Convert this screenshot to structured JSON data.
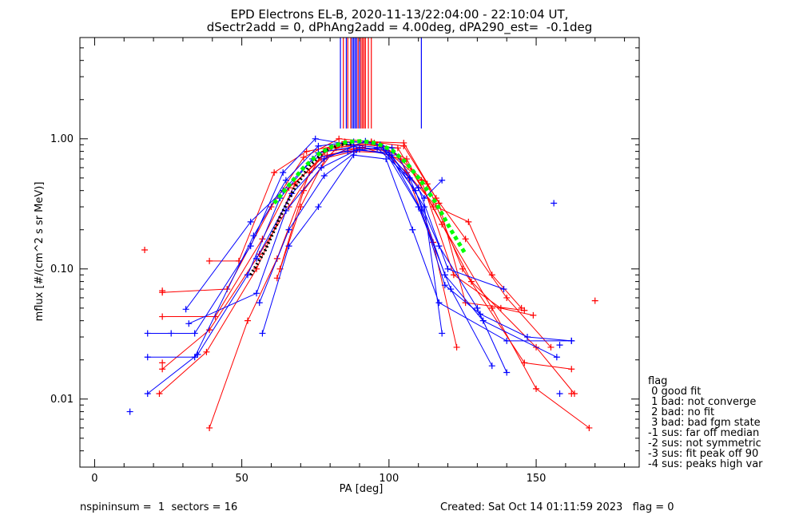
{
  "title_line1": "EPD Electrons EL-B, 2020-11-13/22:04:00 - 22:10:04 UT,",
  "title_line2": "dSectr2add = 0, dPhAng2add = 4.00deg, dPA290_est=  -0.1deg",
  "footer_left": "nspininsum =  1  sectors = 16",
  "footer_right": "Created: Sat Oct 14 01:11:59 2023   flag = 0",
  "legend": {
    "title": "flag",
    "items": [
      " 0 good fit",
      " 1 bad: not converge",
      " 2 bad: no fit",
      " 3 bad: bad fgm state",
      "-1 sus: far off median",
      "-2 sus: not symmetric",
      "-3 sus: fit peak off 90",
      "-4 sus: peaks high var"
    ]
  },
  "colors": {
    "red": "#ff0000",
    "blue": "#0000ff",
    "green": "#00ff00",
    "black": "#000000"
  },
  "chart_data": {
    "type": "line",
    "xlabel": "PA [deg]",
    "ylabel": "mflux [#/(cm^2 s sr MeV)]",
    "xlim": [
      -5,
      185
    ],
    "ylim": [
      0.003,
      6
    ],
    "yscale": "log",
    "xticks": [
      0,
      50,
      100,
      150
    ],
    "xtick_labels": [
      "0",
      "50",
      "100",
      "150"
    ],
    "yticks": [
      0.01,
      0.1,
      1.0
    ],
    "ytick_labels": [
      "0.01",
      "0.10",
      "1.00"
    ],
    "vertical_lines": [
      {
        "x": 83.5,
        "color": "blue"
      },
      {
        "x": 84.5,
        "color": "red"
      },
      {
        "x": 85.5,
        "color": "blue"
      },
      {
        "x": 86,
        "color": "red"
      },
      {
        "x": 87,
        "color": "red"
      },
      {
        "x": 87.5,
        "color": "blue"
      },
      {
        "x": 88,
        "color": "blue"
      },
      {
        "x": 88.5,
        "color": "blue"
      },
      {
        "x": 89,
        "color": "blue"
      },
      {
        "x": 89.5,
        "color": "red"
      },
      {
        "x": 90,
        "color": "blue"
      },
      {
        "x": 90.5,
        "color": "red"
      },
      {
        "x": 91,
        "color": "red"
      },
      {
        "x": 91.5,
        "color": "red"
      },
      {
        "x": 92,
        "color": "red"
      },
      {
        "x": 93,
        "color": "red"
      },
      {
        "x": 94,
        "color": "red"
      },
      {
        "x": 111,
        "color": "blue"
      }
    ],
    "vertical_line_range": [
      1.2,
      6
    ],
    "series": [
      {
        "color": "red",
        "points": [
          [
            22,
            0.011
          ],
          [
            38,
            0.023
          ],
          [
            55,
            0.1
          ],
          [
            68,
            0.45
          ],
          [
            80,
            0.85
          ],
          [
            92,
            0.9
          ],
          [
            103,
            0.85
          ],
          [
            115,
            0.3
          ],
          [
            128,
            0.08
          ],
          [
            150,
            0.025
          ],
          [
            163,
            0.011
          ]
        ]
      },
      {
        "color": "red",
        "points": [
          [
            39,
            0.006
          ],
          [
            52,
            0.04
          ],
          [
            62,
            0.12
          ],
          [
            73,
            0.55
          ],
          [
            85,
            0.95
          ],
          [
            95,
            0.93
          ],
          [
            106,
            0.7
          ],
          [
            118,
            0.22
          ],
          [
            135,
            0.05
          ],
          [
            150,
            0.012
          ],
          [
            168,
            0.006
          ]
        ]
      },
      {
        "color": "red",
        "points": [
          [
            23,
            0.017
          ],
          [
            39,
            0.034
          ],
          [
            56,
            0.13
          ],
          [
            66,
            0.3
          ],
          [
            78,
            0.8
          ],
          [
            90,
            0.85
          ],
          [
            101,
            0.8
          ],
          [
            113,
            0.45
          ],
          [
            125,
            0.1
          ],
          [
            146,
            0.019
          ],
          [
            162,
            0.017
          ]
        ]
      },
      {
        "color": "red",
        "points": [
          [
            23,
            0.043
          ],
          [
            41,
            0.043
          ],
          [
            57,
            0.17
          ],
          [
            66,
            0.42
          ],
          [
            77,
            0.7
          ],
          [
            88,
            0.8
          ],
          [
            100,
            0.78
          ],
          [
            111,
            0.48
          ],
          [
            122,
            0.09
          ],
          [
            138,
            0.05
          ],
          [
            149,
            0.044
          ]
        ]
      },
      {
        "color": "red",
        "points": [
          [
            39,
            0.115
          ],
          [
            49,
            0.115
          ],
          [
            61,
            0.55
          ],
          [
            72,
            0.8
          ],
          [
            84,
            0.9
          ],
          [
            96,
            0.9
          ],
          [
            106,
            0.55
          ],
          [
            116,
            0.3
          ],
          [
            127,
            0.23
          ],
          [
            135,
            0.09
          ],
          [
            145,
            0.05
          ]
        ]
      },
      {
        "color": "red",
        "points": [
          [
            23,
            0.066
          ],
          [
            45,
            0.07
          ],
          [
            60,
            0.3
          ],
          [
            71,
            0.72
          ],
          [
            83,
            1.0
          ],
          [
            94,
            0.95
          ],
          [
            105,
            0.88
          ],
          [
            116,
            0.35
          ],
          [
            126,
            0.17
          ],
          [
            140,
            0.06
          ],
          [
            155,
            0.025
          ]
        ]
      },
      {
        "color": "red",
        "points": [
          [
            62,
            0.085
          ],
          [
            70,
            0.3
          ],
          [
            79,
            0.75
          ],
          [
            91,
            0.86
          ],
          [
            104,
            0.7
          ],
          [
            115,
            0.16
          ],
          [
            123,
            0.025
          ]
        ]
      },
      {
        "color": "red",
        "points": [
          [
            63,
            0.1
          ],
          [
            71,
            0.4
          ],
          [
            82,
            0.85
          ],
          [
            94,
            0.95
          ],
          [
            105,
            0.93
          ],
          [
            117,
            0.32
          ],
          [
            126,
            0.055
          ],
          [
            146,
            0.048
          ]
        ]
      },
      {
        "color": "blue",
        "points": [
          [
            18,
            0.011
          ],
          [
            35,
            0.022
          ],
          [
            52,
            0.09
          ],
          [
            63,
            0.35
          ],
          [
            74,
            0.7
          ],
          [
            86,
            0.8
          ],
          [
            96,
            0.85
          ],
          [
            107,
            0.5
          ],
          [
            117,
            0.15
          ],
          [
            130,
            0.05
          ],
          [
            140,
            0.016
          ]
        ]
      },
      {
        "color": "blue",
        "points": [
          [
            18,
            0.032
          ],
          [
            34,
            0.032
          ],
          [
            53,
            0.15
          ],
          [
            64,
            0.55
          ],
          [
            75,
            1.0
          ],
          [
            87,
            0.9
          ],
          [
            98,
            0.85
          ],
          [
            110,
            0.3
          ],
          [
            121,
            0.07
          ],
          [
            135,
            0.018
          ]
        ]
      },
      {
        "color": "blue",
        "points": [
          [
            18,
            0.021
          ],
          [
            34,
            0.021
          ],
          [
            54,
            0.18
          ],
          [
            65,
            0.48
          ],
          [
            76,
            0.88
          ],
          [
            88,
            0.95
          ],
          [
            97,
            0.9
          ],
          [
            109,
            0.4
          ],
          [
            119,
            0.09
          ],
          [
            132,
            0.04
          ],
          [
            157,
            0.021
          ]
        ]
      },
      {
        "color": "blue",
        "points": [
          [
            31,
            0.049
          ],
          [
            53,
            0.23
          ],
          [
            64,
            0.4
          ],
          [
            76,
            0.78
          ],
          [
            88,
            0.87
          ],
          [
            99,
            0.82
          ],
          [
            110,
            0.42
          ],
          [
            120,
            0.1
          ],
          [
            139,
            0.07
          ]
        ]
      },
      {
        "color": "blue",
        "points": [
          [
            32,
            0.038
          ],
          [
            55,
            0.065
          ],
          [
            65,
            0.28
          ],
          [
            77,
            0.6
          ],
          [
            89,
            0.82
          ],
          [
            100,
            0.78
          ],
          [
            111,
            0.28
          ],
          [
            119,
            0.075
          ],
          [
            131,
            0.045
          ],
          [
            147,
            0.03
          ],
          [
            162,
            0.028
          ]
        ]
      },
      {
        "color": "blue",
        "points": [
          [
            56,
            0.055
          ],
          [
            66,
            0.2
          ],
          [
            78,
            0.52
          ],
          [
            90,
            0.83
          ],
          [
            101,
            0.75
          ],
          [
            112,
            0.3
          ],
          [
            118,
            0.032
          ]
        ]
      },
      {
        "color": "blue",
        "points": [
          [
            57,
            0.032
          ],
          [
            66,
            0.15
          ],
          [
            76,
            0.3
          ],
          [
            88,
            0.75
          ],
          [
            99,
            0.7
          ],
          [
            108,
            0.2
          ],
          [
            117,
            0.055
          ],
          [
            140,
            0.028
          ],
          [
            162,
            0.028
          ]
        ]
      },
      {
        "color": "blue",
        "points": [
          [
            55,
            0.12
          ],
          [
            67,
            0.38
          ],
          [
            78,
            0.7
          ],
          [
            92,
            0.96
          ],
          [
            101,
            0.85
          ],
          [
            112,
            0.35
          ],
          [
            118,
            0.48
          ]
        ]
      }
    ],
    "isolated_points": [
      {
        "x": 17,
        "y": 0.14,
        "color": "red"
      },
      {
        "x": 23,
        "y": 0.068,
        "color": "red"
      },
      {
        "x": 23,
        "y": 0.019,
        "color": "red"
      },
      {
        "x": 12,
        "y": 0.008,
        "color": "blue"
      },
      {
        "x": 26,
        "y": 0.032,
        "color": "blue"
      },
      {
        "x": 156,
        "y": 0.32,
        "color": "blue"
      },
      {
        "x": 158,
        "y": 0.011,
        "color": "blue"
      },
      {
        "x": 158,
        "y": 0.026,
        "color": "blue"
      },
      {
        "x": 162,
        "y": 0.011,
        "color": "red"
      },
      {
        "x": 170,
        "y": 0.057,
        "color": "red"
      }
    ],
    "fit_curves": [
      {
        "color": "black",
        "style": "dotted",
        "points": [
          [
            53,
            0.09
          ],
          [
            58,
            0.14
          ],
          [
            63,
            0.25
          ],
          [
            68,
            0.42
          ],
          [
            73,
            0.62
          ],
          [
            78,
            0.8
          ],
          [
            83,
            0.9
          ],
          [
            88,
            0.93
          ]
        ]
      },
      {
        "color": "green",
        "style": "dashed",
        "points": [
          [
            61,
            0.32
          ],
          [
            66,
            0.44
          ],
          [
            71,
            0.6
          ],
          [
            76,
            0.76
          ],
          [
            81,
            0.88
          ],
          [
            86,
            0.95
          ],
          [
            91,
            0.96
          ],
          [
            96,
            0.92
          ],
          [
            101,
            0.82
          ],
          [
            106,
            0.65
          ],
          [
            111,
            0.47
          ],
          [
            116,
            0.32
          ],
          [
            121,
            0.2
          ],
          [
            126,
            0.13
          ]
        ]
      }
    ]
  }
}
